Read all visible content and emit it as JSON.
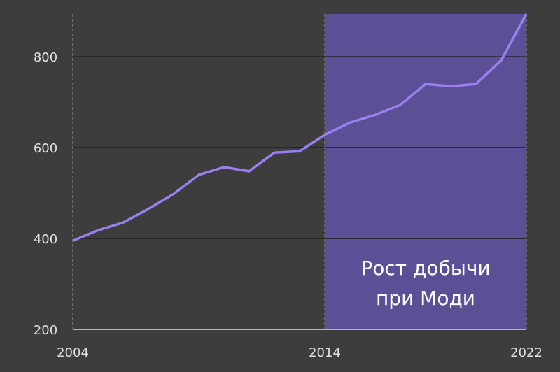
{
  "chart_data": {
    "type": "line",
    "x": [
      2004,
      2005,
      2006,
      2007,
      2008,
      2009,
      2010,
      2011,
      2012,
      2013,
      2014,
      2015,
      2016,
      2017,
      2018,
      2019,
      2020,
      2021,
      2022
    ],
    "values": [
      395,
      418,
      435,
      465,
      498,
      540,
      557,
      548,
      589,
      592,
      628,
      655,
      672,
      694,
      740,
      735,
      740,
      792,
      894
    ],
    "color": "#9b7ff0",
    "xlim": [
      2004,
      2022
    ],
    "xticks": [
      2004,
      2014,
      2022
    ],
    "ylim": [
      200,
      894
    ],
    "yticks": [
      200,
      400,
      600,
      800
    ],
    "grid": true,
    "highlight": {
      "from": 2014,
      "to": 2022,
      "color": "#5b4f96",
      "label": [
        "Рост добычи",
        "при Моди"
      ]
    }
  }
}
